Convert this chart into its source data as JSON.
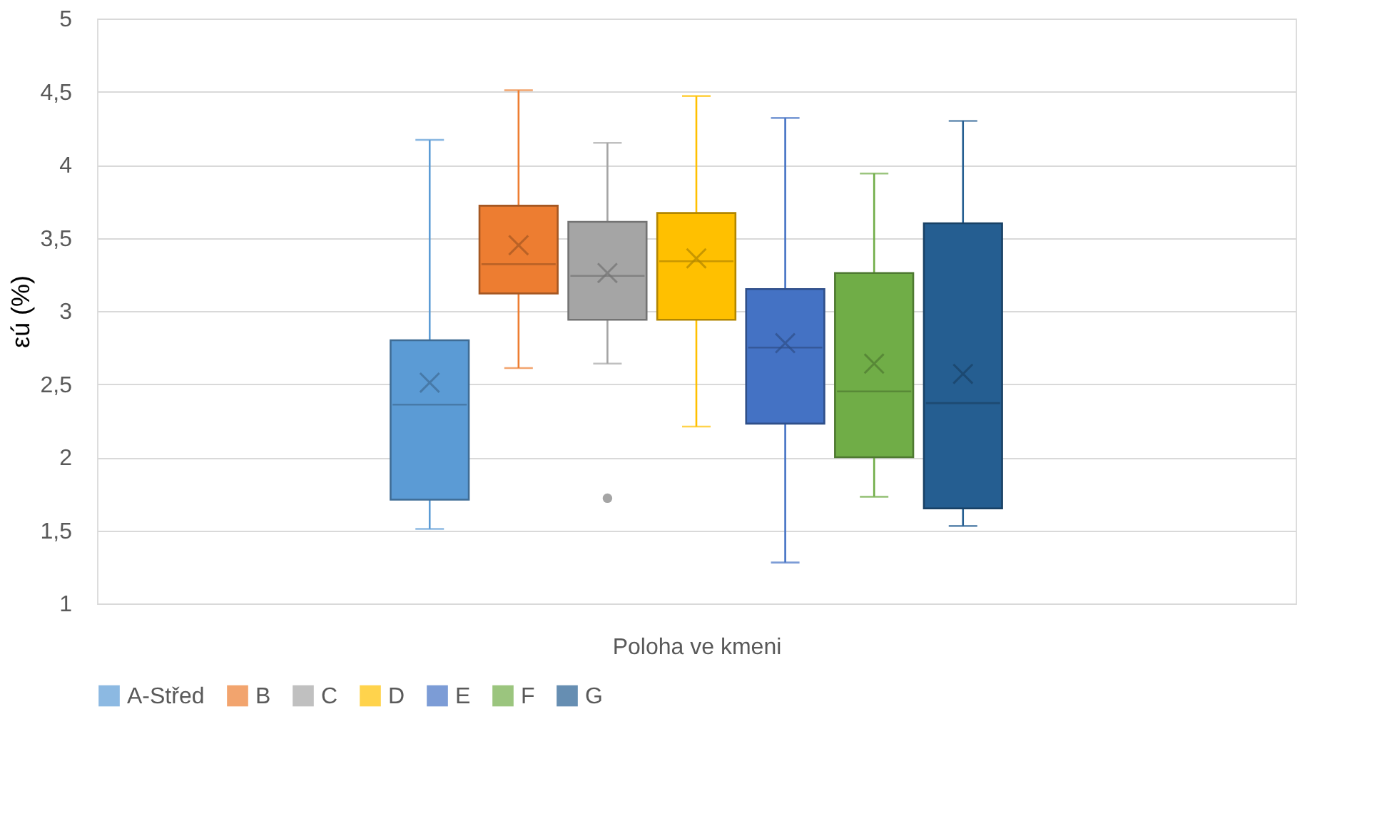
{
  "chart_data": {
    "type": "box",
    "xlabel": "Poloha ve kmeni",
    "ylabel": "εú (%)",
    "categories": [
      null
    ],
    "series": [
      {
        "name": "A-Střed",
        "color": "#5b9bd5",
        "boxes": [
          {
            "low": 1.51,
            "q1": 1.71,
            "median": 2.36,
            "q3": 2.8,
            "high": 4.17,
            "mean": 2.51
          }
        ]
      },
      {
        "name": "B",
        "color": "#ed7d31",
        "boxes": [
          {
            "low": 2.61,
            "q1": 3.12,
            "median": 3.32,
            "q3": 3.72,
            "high": 4.51,
            "mean": 3.45
          }
        ]
      },
      {
        "name": "C",
        "color": "#a5a5a5",
        "boxes": [
          {
            "low": 2.64,
            "q1": 2.94,
            "median": 3.24,
            "q3": 3.61,
            "high": 4.15,
            "mean": 3.26,
            "outliers": [
              1.72
            ]
          }
        ]
      },
      {
        "name": "D",
        "color": "#ffc000",
        "boxes": [
          {
            "low": 2.21,
            "q1": 2.94,
            "median": 3.34,
            "q3": 3.67,
            "high": 4.47,
            "mean": 3.36
          }
        ]
      },
      {
        "name": "E",
        "color": "#4472c4",
        "boxes": [
          {
            "low": 1.28,
            "q1": 2.23,
            "median": 2.75,
            "q3": 3.15,
            "high": 4.32,
            "mean": 2.78
          }
        ]
      },
      {
        "name": "F",
        "color": "#70ad47",
        "boxes": [
          {
            "low": 1.73,
            "q1": 2.0,
            "median": 2.45,
            "q3": 3.26,
            "high": 3.94,
            "mean": 2.64
          }
        ]
      },
      {
        "name": "G",
        "color": "#255e91",
        "boxes": [
          {
            "low": 1.53,
            "q1": 1.65,
            "median": 2.37,
            "q3": 3.6,
            "high": 4.3,
            "mean": 2.57
          }
        ]
      }
    ],
    "ylim": [
      1,
      5
    ],
    "yticks": [
      1,
      {
        "value": 1.5,
        "label": "1,5"
      },
      2,
      {
        "value": 2.5,
        "label": "2,5"
      },
      3,
      {
        "value": 3.5,
        "label": "3,5"
      },
      4,
      {
        "value": 4.5,
        "label": "4,5"
      },
      5
    ],
    "grid": "y",
    "legend": "bottom"
  }
}
